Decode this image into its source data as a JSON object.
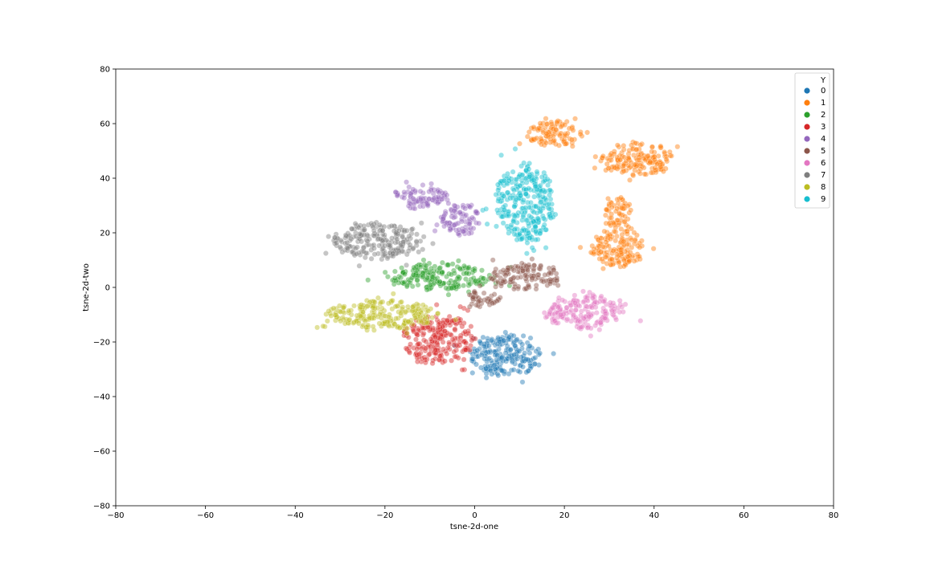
{
  "chart_data": {
    "type": "scatter",
    "title": "",
    "xlabel": "tsne-2d-one",
    "ylabel": "tsne-2d-two",
    "xlim": [
      -80,
      80
    ],
    "ylim": [
      -80,
      80
    ],
    "x_ticks": [
      -80,
      -60,
      -40,
      -20,
      0,
      20,
      40,
      60,
      80
    ],
    "y_ticks": [
      -80,
      -60,
      -40,
      -20,
      0,
      20,
      40,
      60,
      80
    ],
    "x_tick_labels": [
      "−80",
      "−60",
      "−40",
      "−20",
      "0",
      "20",
      "40",
      "60",
      "80"
    ],
    "y_tick_labels": [
      "−80",
      "−60",
      "−40",
      "−20",
      "0",
      "20",
      "40",
      "60",
      "80"
    ],
    "grid": false,
    "legend": {
      "title": "Y",
      "placement": "top-right"
    },
    "series": [
      {
        "name": "0",
        "color": "#1f77b4",
        "clusters": [
          {
            "cx": 7,
            "cy": -25,
            "rx": 8,
            "ry": 7.5
          }
        ]
      },
      {
        "name": "1",
        "color": "#ff7f0e",
        "clusters": [
          {
            "cx": 18,
            "cy": 56,
            "rx": 6,
            "ry": 5
          },
          {
            "cx": 36,
            "cy": 47,
            "rx": 8,
            "ry": 6
          },
          {
            "cx": 32,
            "cy": 27,
            "rx": 3,
            "ry": 6
          },
          {
            "cx": 32,
            "cy": 14,
            "rx": 6,
            "ry": 7
          }
        ]
      },
      {
        "name": "2",
        "color": "#2ca02c",
        "clusters": [
          {
            "cx": -8,
            "cy": 4,
            "rx": 12,
            "ry": 5
          }
        ]
      },
      {
        "name": "3",
        "color": "#d62728",
        "clusters": [
          {
            "cx": -8,
            "cy": -19,
            "rx": 8,
            "ry": 8.5
          }
        ]
      },
      {
        "name": "4",
        "color": "#9467bd",
        "clusters": [
          {
            "cx": -12,
            "cy": 33,
            "rx": 6.5,
            "ry": 4
          },
          {
            "cx": -3,
            "cy": 25,
            "rx": 4.5,
            "ry": 6
          }
        ]
      },
      {
        "name": "5",
        "color": "#8c564b",
        "clusters": [
          {
            "cx": 11,
            "cy": 4,
            "rx": 8,
            "ry": 5
          },
          {
            "cx": 2,
            "cy": -4,
            "rx": 3.5,
            "ry": 3
          }
        ]
      },
      {
        "name": "6",
        "color": "#e377c2",
        "clusters": [
          {
            "cx": 24,
            "cy": -9,
            "rx": 9,
            "ry": 6
          }
        ]
      },
      {
        "name": "7",
        "color": "#7f7f7f",
        "clusters": [
          {
            "cx": -22,
            "cy": 17,
            "rx": 10,
            "ry": 6.5
          }
        ]
      },
      {
        "name": "8",
        "color": "#bcbd22",
        "clusters": [
          {
            "cx": -21,
            "cy": -10,
            "rx": 12,
            "ry": 5.5
          }
        ]
      },
      {
        "name": "9",
        "color": "#17becf",
        "clusters": [
          {
            "cx": 11,
            "cy": 31,
            "rx": 6.5,
            "ry": 14
          }
        ]
      }
    ]
  }
}
